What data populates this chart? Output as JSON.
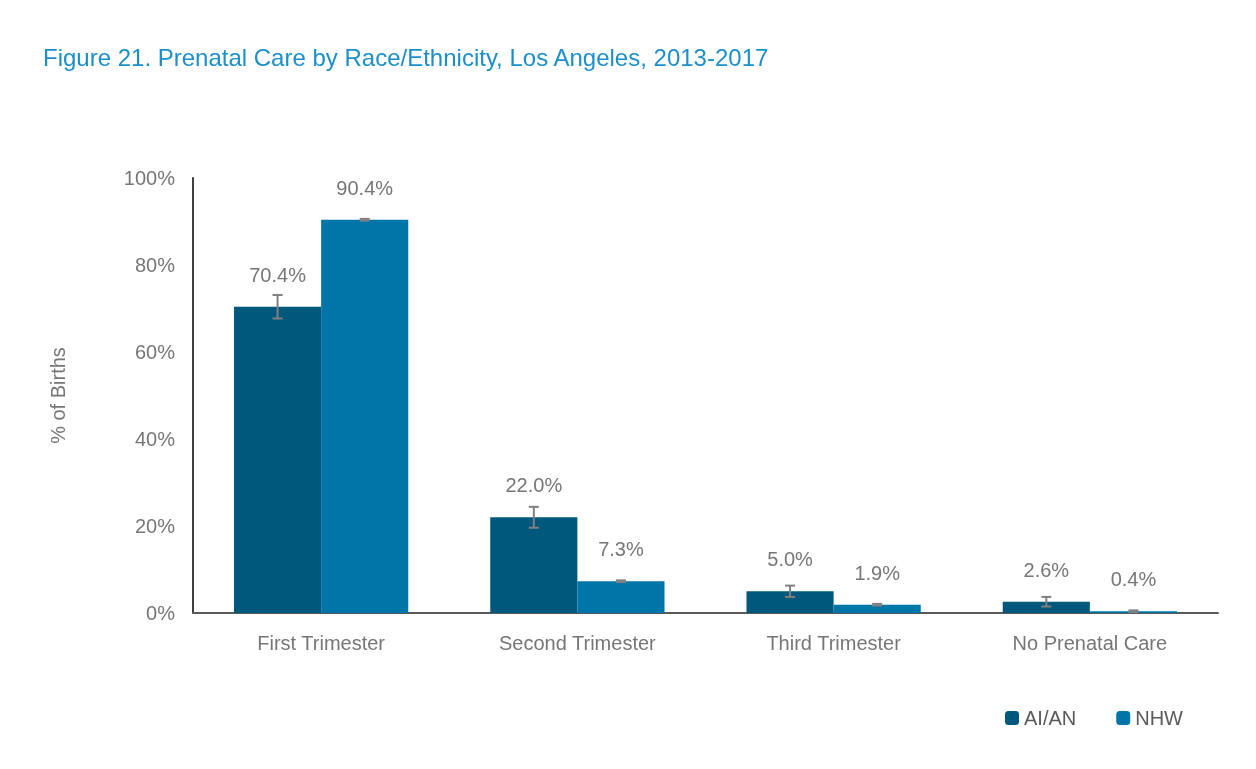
{
  "chart_data": {
    "type": "bar",
    "title": "Figure 21. Prenatal Care by Race/Ethnicity, Los Angeles, 2013-2017",
    "ylabel": "% of Births",
    "categories": [
      "First Trimester",
      "Second Trimester",
      "Third Trimester",
      "No Prenatal Care"
    ],
    "series": [
      {
        "name": "AI/AN",
        "color": "#00587c",
        "values": [
          70.4,
          22.0,
          5.0,
          2.6
        ],
        "errors": [
          2.7,
          2.4,
          1.3,
          1.1
        ],
        "value_labels": [
          "70.4%",
          "22.0%",
          "5.0%",
          "2.6%"
        ]
      },
      {
        "name": "NHW",
        "color": "#0075a8",
        "values": [
          90.4,
          7.3,
          1.9,
          0.4
        ],
        "errors": [
          0.2,
          0.2,
          0.2,
          0.2
        ],
        "value_labels": [
          "90.4%",
          "7.3%",
          "1.9%",
          "0.4%"
        ]
      }
    ],
    "ylim": [
      0,
      100
    ],
    "yticks": [
      {
        "value": 0,
        "label": "0%"
      },
      {
        "value": 20,
        "label": "20%"
      },
      {
        "value": 40,
        "label": "40%"
      },
      {
        "value": 60,
        "label": "60%"
      },
      {
        "value": 80,
        "label": "80%"
      },
      {
        "value": 100,
        "label": "100%"
      }
    ],
    "grid": false,
    "legend": "bottom right"
  }
}
